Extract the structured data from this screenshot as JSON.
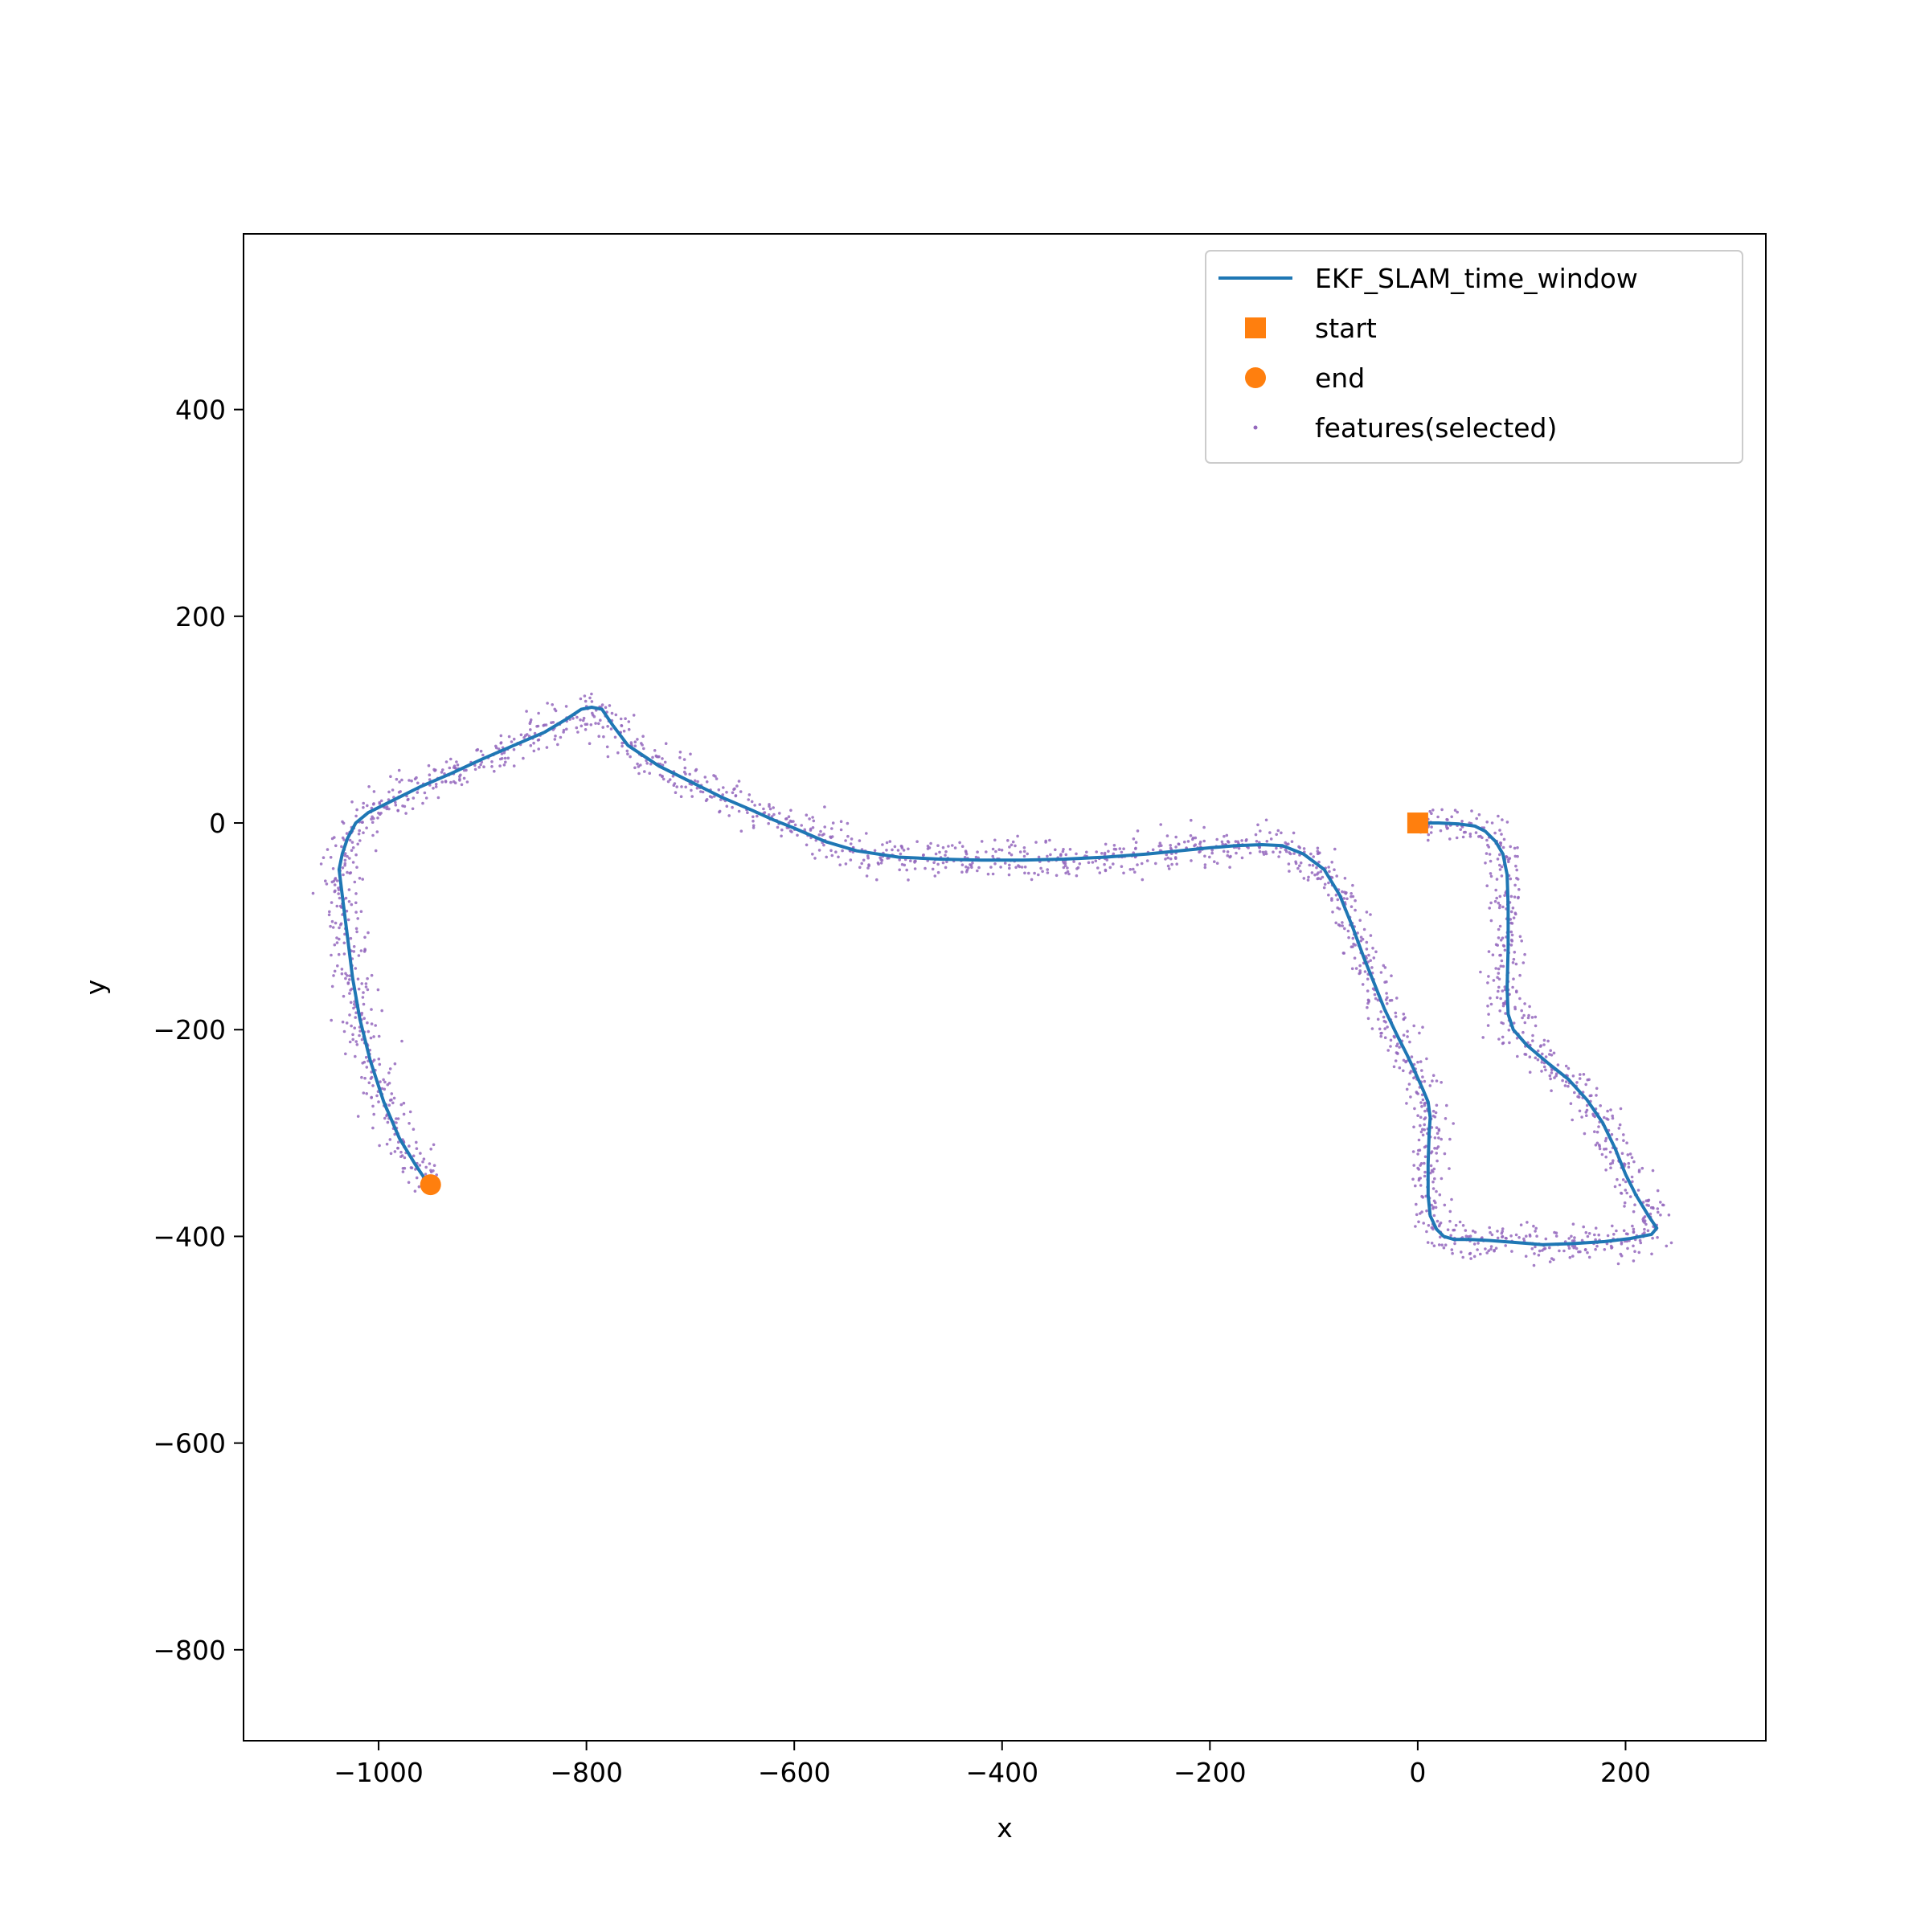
{
  "chart_data": {
    "type": "line",
    "title": "",
    "xlabel": "x",
    "ylabel": "y",
    "xlim": [
      -1130,
      335
    ],
    "ylim": [
      -888,
      570
    ],
    "x_ticks": [
      -1000,
      -800,
      -600,
      -400,
      -200,
      0,
      200
    ],
    "y_ticks": [
      -800,
      -600,
      -400,
      -200,
      0,
      200,
      400
    ],
    "x_tick_labels": [
      "−1000",
      "−800",
      "−600",
      "−400",
      "−200",
      "0",
      "200"
    ],
    "y_tick_labels": [
      "−800",
      "−600",
      "−400",
      "−200",
      "0",
      "200",
      "400"
    ],
    "grid": false,
    "legend_position": "top-right",
    "legend": [
      {
        "label": "EKF_SLAM_time_window",
        "kind": "line",
        "color": "#1f77b4"
      },
      {
        "label": "start",
        "kind": "square",
        "color": "#ff7f0e"
      },
      {
        "label": "end",
        "kind": "circle",
        "color": "#ff7f0e"
      },
      {
        "label": "features(selected)",
        "kind": "dot",
        "color": "#9467bd"
      }
    ],
    "series": [
      {
        "name": "EKF_SLAM_time_window",
        "color": "#1f77b4",
        "points": [
          [
            0,
            0
          ],
          [
            20,
            0
          ],
          [
            40,
            -1
          ],
          [
            55,
            -3
          ],
          [
            65,
            -8
          ],
          [
            75,
            -18
          ],
          [
            82,
            -30
          ],
          [
            86,
            -50
          ],
          [
            87,
            -80
          ],
          [
            87,
            -120
          ],
          [
            86,
            -160
          ],
          [
            87,
            -185
          ],
          [
            92,
            -200
          ],
          [
            105,
            -215
          ],
          [
            125,
            -232
          ],
          [
            145,
            -248
          ],
          [
            163,
            -268
          ],
          [
            178,
            -290
          ],
          [
            190,
            -315
          ],
          [
            200,
            -340
          ],
          [
            210,
            -360
          ],
          [
            222,
            -380
          ],
          [
            230,
            -392
          ],
          [
            225,
            -398
          ],
          [
            205,
            -402
          ],
          [
            180,
            -405
          ],
          [
            150,
            -407
          ],
          [
            120,
            -408
          ],
          [
            95,
            -406
          ],
          [
            70,
            -404
          ],
          [
            50,
            -403
          ],
          [
            35,
            -403
          ],
          [
            25,
            -400
          ],
          [
            18,
            -393
          ],
          [
            12,
            -380
          ],
          [
            10,
            -360
          ],
          [
            10,
            -330
          ],
          [
            11,
            -300
          ],
          [
            12,
            -285
          ],
          [
            10,
            -270
          ],
          [
            5,
            -258
          ],
          [
            -3,
            -240
          ],
          [
            -10,
            -225
          ],
          [
            -20,
            -205
          ],
          [
            -32,
            -180
          ],
          [
            -40,
            -160
          ],
          [
            -52,
            -130
          ],
          [
            -63,
            -100
          ],
          [
            -75,
            -70
          ],
          [
            -90,
            -45
          ],
          [
            -110,
            -30
          ],
          [
            -130,
            -22
          ],
          [
            -150,
            -21
          ],
          [
            -175,
            -22
          ],
          [
            -200,
            -24
          ],
          [
            -230,
            -27
          ],
          [
            -260,
            -30
          ],
          [
            -300,
            -33
          ],
          [
            -340,
            -35
          ],
          [
            -380,
            -36
          ],
          [
            -420,
            -36
          ],
          [
            -460,
            -35
          ],
          [
            -500,
            -33
          ],
          [
            -540,
            -27
          ],
          [
            -570,
            -18
          ],
          [
            -600,
            -5
          ],
          [
            -620,
            3
          ],
          [
            -640,
            12
          ],
          [
            -670,
            25
          ],
          [
            -700,
            40
          ],
          [
            -730,
            55
          ],
          [
            -760,
            75
          ],
          [
            -775,
            95
          ],
          [
            -785,
            110
          ],
          [
            -795,
            112
          ],
          [
            -805,
            110
          ],
          [
            -820,
            100
          ],
          [
            -840,
            88
          ],
          [
            -870,
            75
          ],
          [
            -900,
            62
          ],
          [
            -930,
            48
          ],
          [
            -960,
            35
          ],
          [
            -990,
            20
          ],
          [
            -1010,
            10
          ],
          [
            -1022,
            0
          ],
          [
            -1030,
            -15
          ],
          [
            -1035,
            -30
          ],
          [
            -1038,
            -45
          ],
          [
            -1035,
            -70
          ],
          [
            -1030,
            -110
          ],
          [
            -1025,
            -150
          ],
          [
            -1018,
            -190
          ],
          [
            -1008,
            -230
          ],
          [
            -995,
            -270
          ],
          [
            -980,
            -305
          ],
          [
            -965,
            -330
          ],
          [
            -955,
            -345
          ],
          [
            -950,
            -352
          ]
        ]
      },
      {
        "name": "features(selected)",
        "color": "#9467bd",
        "description_generated": true,
        "points": []
      }
    ],
    "markers": [
      {
        "name": "start",
        "shape": "square",
        "color": "#ff7f0e",
        "x": 0,
        "y": 0
      },
      {
        "name": "end",
        "shape": "circle",
        "color": "#ff7f0e",
        "x": -950,
        "y": -350
      }
    ]
  }
}
